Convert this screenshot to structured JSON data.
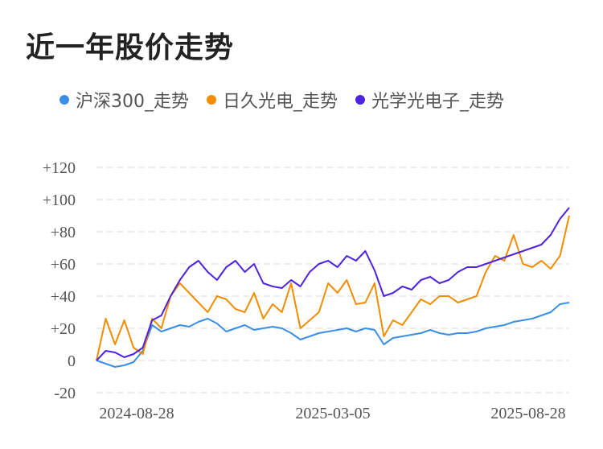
{
  "title": "近一年股价走势",
  "colors": {
    "s0": "#3a8ee6",
    "s1": "#f28c00",
    "s2": "#4d22e0"
  },
  "chart_data": {
    "type": "line",
    "title": "近一年股价走势",
    "xlabel": "",
    "ylabel": "",
    "ylim": [
      -20,
      120
    ],
    "yticks": [
      "+120",
      "+100",
      "+80",
      "+60",
      "+40",
      "+20",
      "0",
      "-20"
    ],
    "xticks": [
      "2024-08-28",
      "2025-03-05",
      "2025-08-28"
    ],
    "grid": true,
    "legend": "top",
    "series": [
      {
        "name": "沪深300_走势",
        "color": "#3a8ee6",
        "values": [
          0,
          -2,
          -4,
          -3,
          -1,
          6,
          22,
          18,
          20,
          22,
          21,
          24,
          26,
          23,
          18,
          20,
          22,
          19,
          20,
          21,
          20,
          17,
          13,
          15,
          17,
          18,
          19,
          20,
          18,
          20,
          19,
          10,
          14,
          15,
          16,
          17,
          19,
          17,
          16,
          17,
          17,
          18,
          20,
          21,
          22,
          24,
          25,
          26,
          28,
          30,
          35,
          36
        ]
      },
      {
        "name": "日久光电_走势",
        "color": "#f28c00",
        "values": [
          0,
          26,
          10,
          25,
          8,
          4,
          26,
          20,
          40,
          48,
          42,
          36,
          30,
          40,
          38,
          32,
          30,
          42,
          26,
          35,
          30,
          48,
          20,
          25,
          30,
          48,
          42,
          50,
          35,
          36,
          48,
          15,
          25,
          22,
          30,
          38,
          35,
          40,
          40,
          36,
          38,
          40,
          55,
          65,
          62,
          78,
          60,
          58,
          62,
          57,
          65,
          90
        ]
      },
      {
        "name": "光学光电子_走势",
        "color": "#4d22e0",
        "values": [
          0,
          6,
          5,
          2,
          4,
          8,
          25,
          28,
          40,
          50,
          58,
          62,
          55,
          50,
          58,
          62,
          55,
          60,
          48,
          46,
          45,
          50,
          46,
          55,
          60,
          62,
          58,
          65,
          62,
          68,
          56,
          40,
          42,
          46,
          44,
          50,
          52,
          48,
          50,
          55,
          58,
          58,
          60,
          62,
          64,
          66,
          68,
          70,
          72,
          78,
          88,
          95
        ]
      }
    ]
  }
}
